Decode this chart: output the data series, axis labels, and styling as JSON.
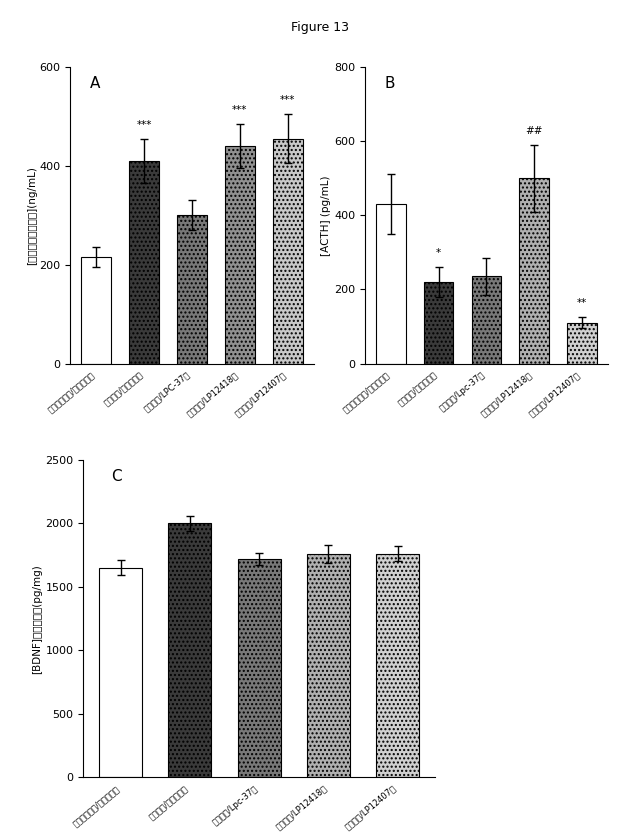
{
  "title": "Figure 13",
  "panel_A": {
    "label": "A",
    "ylabel": "[コルチコステロン](ng/mL)",
    "ylim": [
      0,
      600
    ],
    "yticks": [
      0,
      200,
      400,
      600
    ],
    "categories": [
      "ストレス無し/ビヒクル群",
      "ストレス/ビヒクル群",
      "ストレス/LPC-37群",
      "ストレス/LP12418群",
      "ストレス/LP12407群"
    ],
    "values": [
      215,
      410,
      300,
      440,
      455
    ],
    "errors": [
      20,
      45,
      30,
      45,
      50
    ],
    "bar_styles": [
      {
        "facecolor": "#ffffff",
        "edgecolor": "#000000",
        "hatch": null
      },
      {
        "facecolor": "#3a3a3a",
        "edgecolor": "#000000",
        "hatch": "...."
      },
      {
        "facecolor": "#787878",
        "edgecolor": "#000000",
        "hatch": "...."
      },
      {
        "facecolor": "#909090",
        "edgecolor": "#000000",
        "hatch": "...."
      },
      {
        "facecolor": "#c8c8c8",
        "edgecolor": "#000000",
        "hatch": "...."
      }
    ],
    "significance": [
      "",
      "***",
      "",
      "***",
      "***"
    ]
  },
  "panel_B": {
    "label": "B",
    "ylabel": "[ACTH] (pg/mL)",
    "ylim": [
      0,
      800
    ],
    "yticks": [
      0,
      200,
      400,
      600,
      800
    ],
    "categories": [
      "ストレス無し/ビヒクル群",
      "ストレス/ビヒクル群",
      "ストレス/Lpc-37群",
      "ストレス/LP12418群",
      "ストレス/LP12407群"
    ],
    "values": [
      430,
      220,
      235,
      500,
      110
    ],
    "errors": [
      80,
      40,
      50,
      90,
      15
    ],
    "bar_styles": [
      {
        "facecolor": "#ffffff",
        "edgecolor": "#000000",
        "hatch": null
      },
      {
        "facecolor": "#3a3a3a",
        "edgecolor": "#000000",
        "hatch": "...."
      },
      {
        "facecolor": "#787878",
        "edgecolor": "#000000",
        "hatch": "...."
      },
      {
        "facecolor": "#b0b0b0",
        "edgecolor": "#000000",
        "hatch": "...."
      },
      {
        "facecolor": "#d0d0d0",
        "edgecolor": "#000000",
        "hatch": "...."
      }
    ],
    "significance": [
      "",
      "*",
      "",
      "##",
      "**"
    ]
  },
  "panel_C": {
    "label": "C",
    "ylabel": "[BDNF]湿性重量の(pg/mg)",
    "ylim": [
      0,
      2500
    ],
    "yticks": [
      0,
      500,
      1000,
      1500,
      2000,
      2500
    ],
    "categories": [
      "ストレス無し/ビヒクル群",
      "ストレス/ビヒクル群",
      "ストレス/Lpc-37群",
      "ストレス/LP12418群",
      "ストレス/LP12407群"
    ],
    "values": [
      1650,
      2000,
      1720,
      1760,
      1760
    ],
    "errors": [
      60,
      60,
      50,
      70,
      60
    ],
    "bar_styles": [
      {
        "facecolor": "#ffffff",
        "edgecolor": "#000000",
        "hatch": null
      },
      {
        "facecolor": "#3a3a3a",
        "edgecolor": "#000000",
        "hatch": "...."
      },
      {
        "facecolor": "#787878",
        "edgecolor": "#000000",
        "hatch": "...."
      },
      {
        "facecolor": "#b0b0b0",
        "edgecolor": "#000000",
        "hatch": "...."
      },
      {
        "facecolor": "#d0d0d0",
        "edgecolor": "#000000",
        "hatch": "...."
      }
    ],
    "significance": [
      "",
      "",
      "",
      "",
      ""
    ]
  }
}
